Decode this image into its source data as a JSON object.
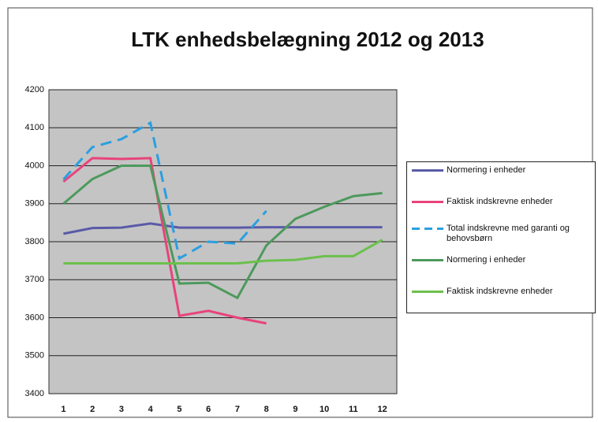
{
  "chart_data": {
    "type": "line",
    "title": "LTK enhedsbelægning 2012 og 2013",
    "categories": [
      "1",
      "2",
      "3",
      "4",
      "5",
      "6",
      "7",
      "8",
      "9",
      "10",
      "11",
      "12"
    ],
    "ylim": [
      3400,
      4200
    ],
    "yticks": [
      3400,
      3500,
      3600,
      3700,
      3800,
      3900,
      4000,
      4100,
      4200
    ],
    "grid": true,
    "legend": "right",
    "plot_background": "#c4c4c4",
    "series": [
      {
        "name": "Normering i enheder",
        "color": "#5a5aa8",
        "dashed": false,
        "values": [
          3821,
          3836,
          3837,
          3848,
          3837,
          3837,
          3837,
          3838,
          3838,
          3838,
          3838,
          3838
        ]
      },
      {
        "name": "Faktisk indskrevne enheder",
        "color": "#e8437c",
        "dashed": false,
        "values": [
          3958,
          4020,
          4018,
          4020,
          3605,
          3618,
          3600,
          3585,
          null,
          null,
          null,
          null
        ]
      },
      {
        "name": "Total indskrevne med garanti og behovsbørn",
        "color": "#2a9fe0",
        "dashed": true,
        "values": [
          3964,
          4049,
          4070,
          4113,
          3756,
          3800,
          3795,
          3881,
          null,
          null,
          null,
          null
        ]
      },
      {
        "name": "Normering i enheder",
        "color": "#4c9a5c",
        "dashed": false,
        "values": [
          3900,
          3965,
          4000,
          4000,
          3690,
          3692,
          3652,
          3790,
          3860,
          3892,
          3920,
          3928
        ]
      },
      {
        "name": "Faktisk indskrevne enheder",
        "color": "#6cc04c",
        "dashed": false,
        "values": [
          3743,
          3743,
          3743,
          3743,
          3743,
          3743,
          3743,
          3750,
          3752,
          3762,
          3762,
          3805
        ]
      }
    ]
  }
}
